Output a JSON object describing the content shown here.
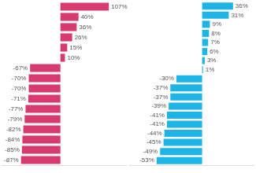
{
  "chart_data": [
    {
      "type": "bar",
      "orientation": "horizontal",
      "color": "#d63a6e",
      "categories": [
        null,
        null,
        null,
        null,
        null,
        null,
        null,
        null,
        null,
        null,
        null,
        null,
        null,
        null,
        null,
        null
      ],
      "values": [
        107,
        40,
        36,
        26,
        15,
        10,
        -67,
        -70,
        -70,
        -71,
        -77,
        -79,
        -82,
        -84,
        -85,
        -87
      ],
      "value_labels": [
        "107%",
        "40%",
        "36%",
        "26%",
        "15%",
        "10%",
        "-67%",
        "-70%",
        "-70%",
        "-71%",
        "-77%",
        "-79%",
        "-82%",
        "-84%",
        "-85%",
        "-87%"
      ],
      "xlim": [
        -130,
        145
      ],
      "data_labels": true,
      "tick_labels": false,
      "grid": false
    },
    {
      "type": "bar",
      "orientation": "horizontal",
      "color": "#1eb4e6",
      "categories": [
        null,
        null,
        null,
        null,
        null,
        null,
        null,
        null,
        null,
        null,
        null,
        null,
        null,
        null,
        null,
        null,
        null,
        null
      ],
      "values": [
        36,
        31,
        9,
        8,
        7,
        6,
        3,
        1,
        -30,
        -37,
        -37,
        -39,
        -41,
        -41,
        -44,
        -45,
        -49,
        -53
      ],
      "value_labels": [
        "36%",
        "31%",
        "9%",
        "8%",
        "7%",
        "6%",
        "3%",
        "1%",
        "-30%",
        "-37%",
        "-37%",
        "-39%",
        "-41%",
        "-41%",
        "-44%",
        "-45%",
        "-49%",
        "-53%"
      ],
      "xlim": [
        -85,
        60
      ],
      "data_labels": true,
      "tick_labels": false,
      "grid": false
    }
  ]
}
